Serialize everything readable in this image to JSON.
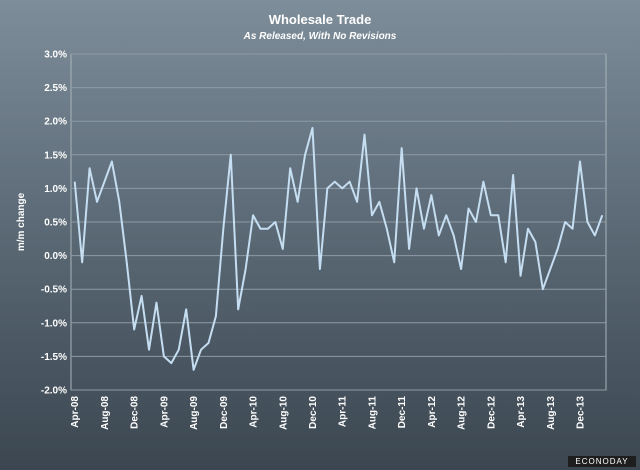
{
  "chart_data": {
    "type": "line",
    "title": "Wholesale Trade",
    "subtitle": "As Released, With No Revisions",
    "xlabel": "",
    "ylabel": "m/m change",
    "ylim": [
      -2.0,
      3.0
    ],
    "yticks": [
      "3.0%",
      "2.5%",
      "2.0%",
      "1.5%",
      "1.0%",
      "0.5%",
      "0.0%",
      "-0.5%",
      "-1.0%",
      "-1.5%",
      "-2.0%"
    ],
    "ytick_values": [
      3.0,
      2.5,
      2.0,
      1.5,
      1.0,
      0.5,
      0.0,
      -0.5,
      -1.0,
      -1.5,
      -2.0
    ],
    "xticks": [
      "Apr-08",
      "Aug-08",
      "Dec-08",
      "Apr-09",
      "Aug-09",
      "Dec-09",
      "Apr-10",
      "Aug-10",
      "Dec-10",
      "Apr-11",
      "Aug-11",
      "Dec-11",
      "Apr-12",
      "Aug-12",
      "Dec-12",
      "Apr-13",
      "Aug-13",
      "Dec-13"
    ],
    "grid": true,
    "x_start": "Apr-08",
    "series": [
      {
        "values": [
          1.1,
          -0.1,
          1.3,
          0.8,
          1.1,
          1.4,
          0.8,
          -0.1,
          -1.1,
          -0.6,
          -1.4,
          -0.7,
          -1.5,
          -1.6,
          -1.4,
          -0.8,
          -1.7,
          -1.4,
          -1.3,
          -0.9,
          0.4,
          1.5,
          -0.8,
          -0.2,
          0.6,
          0.4,
          0.4,
          0.5,
          0.1,
          1.3,
          0.8,
          1.5,
          1.9,
          -0.2,
          1.0,
          1.1,
          1.0,
          1.1,
          0.8,
          1.8,
          0.6,
          0.8,
          0.4,
          -0.1,
          1.6,
          0.1,
          1.0,
          0.4,
          0.9,
          0.3,
          0.6,
          0.3,
          -0.2,
          0.7,
          0.5,
          1.1,
          0.6,
          0.6,
          -0.1,
          1.2,
          -0.3,
          0.4,
          0.2,
          -0.5,
          -0.2,
          0.1,
          0.5,
          0.4,
          1.4,
          0.5,
          0.3,
          0.6
        ]
      }
    ]
  },
  "branding": {
    "watermark": "ECONODAY"
  },
  "colors": {
    "line": "#c6def2",
    "grid": "#8e9aa4",
    "plot_border": "#a9b4bc"
  }
}
